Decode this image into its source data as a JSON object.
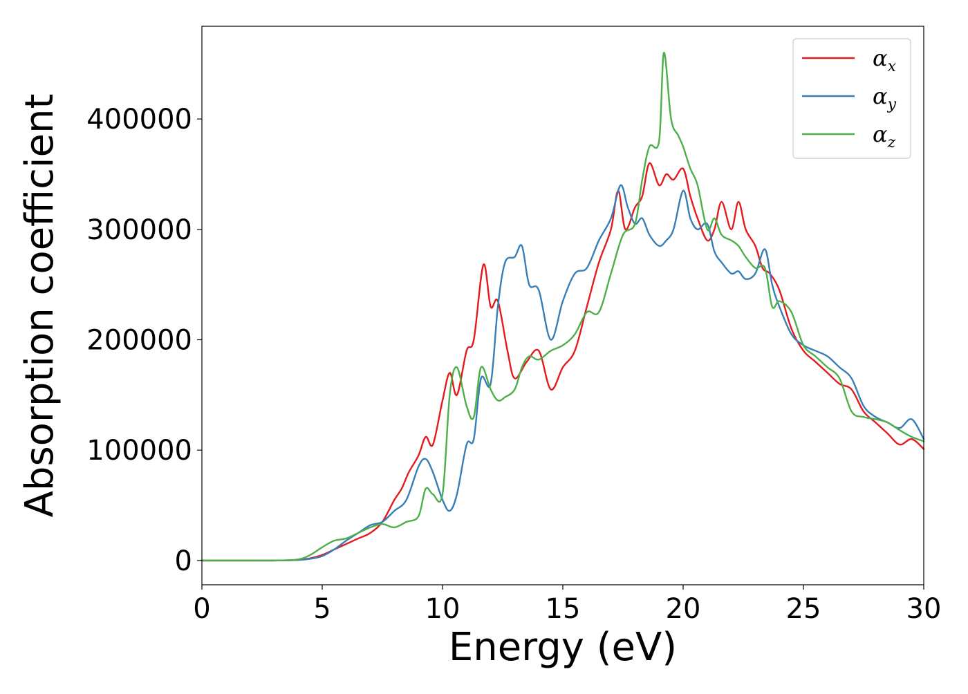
{
  "chart_data": {
    "type": "line",
    "xlabel": "Energy (eV)",
    "ylabel": "Absorption coefficient",
    "xlim": [
      0,
      30
    ],
    "ylim": [
      -22000,
      484000
    ],
    "xticks": [
      0,
      5,
      10,
      15,
      20,
      25,
      30
    ],
    "yticks": [
      0,
      100000,
      200000,
      300000,
      400000
    ],
    "xtick_labels": [
      "0",
      "5",
      "10",
      "15",
      "20",
      "25",
      "30"
    ],
    "ytick_labels": [
      "0",
      "100000",
      "200000",
      "300000",
      "400000"
    ],
    "grid": false,
    "legend_position": "top-right",
    "series": [
      {
        "name": "α_x",
        "label_base": "α",
        "label_sub": "x",
        "color": "#e41a1c",
        "x": [
          0,
          1,
          2,
          3,
          4,
          4.5,
          5,
          5.5,
          6,
          6.5,
          7,
          7.5,
          8,
          8.3,
          8.6,
          9,
          9.3,
          9.6,
          10,
          10.3,
          10.6,
          11,
          11.3,
          11.7,
          12,
          12.3,
          12.7,
          13,
          13.5,
          14,
          14.5,
          15,
          15.5,
          16,
          16.5,
          17,
          17.3,
          17.6,
          18,
          18.3,
          18.6,
          19,
          19.3,
          19.6,
          20,
          20.3,
          20.6,
          21,
          21.3,
          21.6,
          22,
          22.3,
          22.6,
          23,
          23.3,
          23.6,
          24,
          24.5,
          25,
          25.5,
          26,
          26.5,
          27,
          27.5,
          28,
          28.5,
          29,
          29.5,
          30
        ],
        "values": [
          0,
          0,
          0,
          0,
          500,
          2000,
          5000,
          10000,
          15000,
          20000,
          25000,
          35000,
          55000,
          65000,
          80000,
          95000,
          112000,
          105000,
          145000,
          170000,
          150000,
          190000,
          200000,
          268000,
          230000,
          235000,
          190000,
          165000,
          180000,
          190000,
          155000,
          175000,
          190000,
          230000,
          270000,
          300000,
          335000,
          300000,
          320000,
          330000,
          360000,
          340000,
          350000,
          345000,
          355000,
          330000,
          310000,
          290000,
          300000,
          325000,
          300000,
          325000,
          300000,
          285000,
          265000,
          260000,
          245000,
          210000,
          190000,
          180000,
          170000,
          160000,
          155000,
          135000,
          125000,
          115000,
          105000,
          110000,
          101000
        ]
      },
      {
        "name": "α_y",
        "label_base": "α",
        "label_sub": "y",
        "color": "#377eb8",
        "x": [
          0,
          1,
          2,
          3,
          4,
          4.5,
          5,
          5.5,
          6,
          6.5,
          7,
          7.5,
          8,
          8.5,
          9,
          9.3,
          9.6,
          10,
          10.3,
          10.6,
          11,
          11.3,
          11.6,
          12,
          12.3,
          12.6,
          13,
          13.3,
          13.6,
          14,
          14.5,
          15,
          15.5,
          16,
          16.5,
          17,
          17.4,
          17.7,
          18,
          18.3,
          18.6,
          19,
          19.3,
          19.6,
          20,
          20.3,
          20.6,
          21,
          21.3,
          21.6,
          22,
          22.3,
          22.6,
          23,
          23.4,
          23.7,
          24,
          24.5,
          25,
          25.5,
          26,
          26.5,
          27,
          27.5,
          28,
          28.5,
          29,
          29.5,
          30
        ],
        "values": [
          0,
          0,
          0,
          0,
          500,
          1500,
          4000,
          10000,
          18000,
          25000,
          32000,
          35000,
          45000,
          55000,
          85000,
          92000,
          80000,
          55000,
          45000,
          60000,
          105000,
          110000,
          165000,
          160000,
          230000,
          270000,
          275000,
          285000,
          250000,
          245000,
          200000,
          235000,
          260000,
          265000,
          290000,
          310000,
          340000,
          320000,
          305000,
          310000,
          295000,
          285000,
          290000,
          300000,
          335000,
          310000,
          300000,
          305000,
          280000,
          270000,
          260000,
          262000,
          255000,
          260000,
          282000,
          250000,
          230000,
          205000,
          195000,
          190000,
          185000,
          175000,
          165000,
          140000,
          130000,
          125000,
          120000,
          128000,
          110000
        ]
      },
      {
        "name": "α_z",
        "label_base": "α",
        "label_sub": "z",
        "color": "#4daf4a",
        "x": [
          0,
          1,
          2,
          3,
          4,
          4.5,
          5,
          5.5,
          6,
          6.5,
          7,
          7.5,
          8,
          8.5,
          9,
          9.3,
          9.6,
          10,
          10.3,
          10.6,
          11,
          11.3,
          11.6,
          12,
          12.3,
          12.6,
          13,
          13.3,
          13.6,
          14,
          14.5,
          15,
          15.5,
          16,
          16.5,
          17,
          17.5,
          18,
          18.3,
          18.6,
          19,
          19.2,
          19.5,
          19.8,
          20,
          20.3,
          20.6,
          21,
          21.3,
          21.6,
          22,
          22.3,
          22.6,
          23,
          23.4,
          23.7,
          24,
          24.5,
          25,
          25.5,
          26,
          26.5,
          27,
          27.5,
          28,
          28.5,
          29,
          29.5,
          30
        ],
        "values": [
          0,
          0,
          0,
          0,
          1000,
          5000,
          12000,
          18000,
          20000,
          25000,
          30000,
          33000,
          30000,
          35000,
          40000,
          65000,
          60000,
          60000,
          150000,
          175000,
          140000,
          130000,
          175000,
          155000,
          145000,
          148000,
          155000,
          175000,
          185000,
          182000,
          190000,
          195000,
          205000,
          225000,
          225000,
          260000,
          295000,
          305000,
          345000,
          375000,
          380000,
          460000,
          400000,
          385000,
          375000,
          355000,
          340000,
          300000,
          310000,
          295000,
          290000,
          285000,
          275000,
          265000,
          265000,
          230000,
          235000,
          225000,
          195000,
          185000,
          175000,
          165000,
          135000,
          130000,
          128000,
          125000,
          118000,
          112000,
          108000
        ]
      }
    ]
  }
}
